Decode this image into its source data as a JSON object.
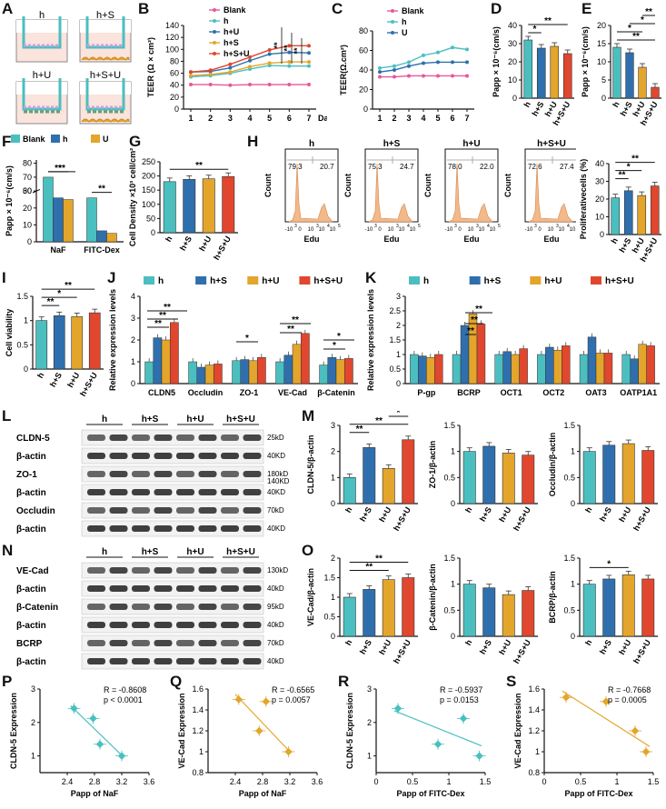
{
  "panel_letters": {
    "A": "A",
    "B": "B",
    "C": "C",
    "D": "D",
    "E": "E",
    "F": "F",
    "G": "G",
    "H": "H",
    "I": "I",
    "J": "J",
    "K": "K",
    "L": "L",
    "M": "M",
    "N": "N",
    "O": "O",
    "P": "P",
    "Q": "Q",
    "R": "R",
    "S": "S"
  },
  "colors": {
    "h": "#4bbfbf",
    "hS": "#2f6fad",
    "hU": "#e3a52b",
    "hSU": "#e0472e",
    "blank": "#e8589a",
    "flow": "#f2b98a",
    "blot": "#555555",
    "fit_blue": "#4bbfbf",
    "fit_yellow": "#e3a52b"
  },
  "schematic": {
    "labels": [
      "h",
      "h+S",
      "h+U",
      "h+S+U"
    ]
  },
  "day_label": "Day",
  "flow": {
    "panels": [
      {
        "title": "h",
        "left": "79.3",
        "right": "20.7"
      },
      {
        "title": "h+S",
        "left": "75.3",
        "right": "24.7"
      },
      {
        "title": "h+U",
        "left": "78.0",
        "right": "22.0"
      },
      {
        "title": "h+S+U",
        "left": "72.6",
        "right": "27.4"
      }
    ],
    "ylabel": "Count",
    "xlabel": "Edu",
    "ticks": [
      "-10",
      "0",
      "10",
      "10",
      "10"
    ],
    "tick_exp": [
      "3",
      "",
      "3",
      "4",
      "5"
    ]
  },
  "blots": {
    "L": {
      "header": [
        "h",
        "h+S",
        "h+U",
        "h+S+U"
      ],
      "rows": [
        {
          "name": "CLDN-5",
          "kd": "25kD"
        },
        {
          "name": "β-actin",
          "kd": "40KD"
        },
        {
          "name": "ZO-1",
          "kd": "180kD",
          "kd2": "140KD"
        },
        {
          "name": "β-actin",
          "kd": "40KD"
        },
        {
          "name": "Occludin",
          "kd": "70kD"
        },
        {
          "name": "β-actin",
          "kd": "40KD"
        }
      ]
    },
    "N": {
      "header": [
        "h",
        "h+S",
        "h+U",
        "h+S+U"
      ],
      "rows": [
        {
          "name": "VE-Cad",
          "kd": "130kD"
        },
        {
          "name": "β-actin",
          "kd": "40kD"
        },
        {
          "name": "β-Catenin",
          "kd": "95kD"
        },
        {
          "name": "β-actin",
          "kd": "40kD"
        },
        {
          "name": "BCRP",
          "kd": "70kD"
        },
        {
          "name": "β-actin",
          "kd": "40kD"
        }
      ]
    }
  },
  "chart_data": [
    {
      "id": "B",
      "type": "line",
      "ylabel": "TEER (Ω × cm²)",
      "xlabel": "Day",
      "ylim": [
        0,
        140
      ],
      "yticks": [
        0,
        20,
        40,
        60,
        80,
        100,
        120,
        140
      ],
      "x": [
        1,
        2,
        3,
        4,
        5,
        6,
        7
      ],
      "legend": [
        "Blank",
        "h",
        "h+U",
        "h+S",
        "h+S+U"
      ],
      "series": [
        {
          "name": "Blank",
          "color": "#e8589a",
          "values": [
            41,
            41,
            40,
            41,
            41,
            41,
            41
          ]
        },
        {
          "name": "h",
          "color": "#4bbfbf",
          "values": [
            54,
            56,
            60,
            67,
            73,
            72,
            72
          ]
        },
        {
          "name": "h+U",
          "color": "#2f6fad",
          "values": [
            62,
            63,
            69,
            81,
            92,
            95,
            94
          ]
        },
        {
          "name": "h+S",
          "color": "#e3a52b",
          "values": [
            56,
            58,
            62,
            71,
            77,
            79,
            79
          ]
        },
        {
          "name": "h+S+U",
          "color": "#e0472e",
          "values": [
            62,
            65,
            75,
            87,
            99,
            106,
            106
          ]
        }
      ],
      "annotations": [
        "**",
        "**",
        "**"
      ]
    },
    {
      "id": "C",
      "type": "line",
      "ylabel": "TEER(Ω.cm²)",
      "xlabel": "",
      "ylim": [
        0,
        80
      ],
      "yticks": [
        0,
        20,
        40,
        60,
        80
      ],
      "x": [
        1,
        2,
        3,
        4,
        5,
        6,
        7
      ],
      "legend": [
        "Blank",
        "h",
        "U"
      ],
      "series": [
        {
          "name": "Blank",
          "color": "#e8589a",
          "values": [
            33,
            33,
            34,
            34,
            34,
            34,
            34
          ]
        },
        {
          "name": "h",
          "color": "#4bbfbf",
          "values": [
            42,
            44,
            48,
            55,
            58,
            63,
            61
          ]
        },
        {
          "name": "U",
          "color": "#2f6fad",
          "values": [
            38,
            40,
            44,
            47,
            48,
            48,
            48
          ]
        }
      ]
    },
    {
      "id": "D",
      "type": "bar",
      "ylabel": "Papp × 10⁻⁶(cm/s)",
      "ylim": [
        0,
        40
      ],
      "yticks": [
        0,
        10,
        20,
        30,
        40
      ],
      "categories": [
        "h",
        "h+S",
        "h+U",
        "h+S+U"
      ],
      "values": [
        32,
        27.5,
        28.5,
        24.5
      ],
      "colors": [
        "#4bbfbf",
        "#2f6fad",
        "#e3a52b",
        "#e0472e"
      ],
      "annotations": [
        {
          "a": 0,
          "b": 1,
          "label": "*"
        },
        {
          "a": 0,
          "b": 3,
          "label": "**"
        }
      ]
    },
    {
      "id": "E",
      "type": "bar",
      "ylabel": "Papp × 10⁻⁶(cm/s)",
      "ylim": [
        0,
        20
      ],
      "yticks": [
        0,
        5,
        10,
        15,
        20
      ],
      "categories": [
        "h",
        "h+S",
        "h+U",
        "h+S+U"
      ],
      "values": [
        14,
        12.5,
        8.5,
        3
      ],
      "colors": [
        "#4bbfbf",
        "#2f6fad",
        "#e3a52b",
        "#e0472e"
      ],
      "annotations": [
        {
          "a": 0,
          "b": 3,
          "label": "**"
        },
        {
          "a": 0,
          "b": 2,
          "label": "*"
        },
        {
          "a": 1,
          "b": 3,
          "label": "*"
        },
        {
          "a": 2,
          "b": 3,
          "label": "**"
        }
      ]
    },
    {
      "id": "F",
      "type": "bar",
      "ylabel": "Papp × 10⁻⁶(cm/s)",
      "ylim": [
        0,
        80
      ],
      "yticks": [
        0,
        10,
        20,
        30,
        60,
        70,
        80
      ],
      "categories": [
        "NaF",
        "FITC-Dex"
      ],
      "legend": [
        "Blank",
        "h",
        "U"
      ],
      "series": [
        {
          "name": "Blank",
          "color": "#4bbfbf",
          "values": [
            70,
            26
          ]
        },
        {
          "name": "h",
          "color": "#2f6fad",
          "values": [
            26,
            6.5
          ]
        },
        {
          "name": "U",
          "color": "#e3a52b",
          "values": [
            25,
            5
          ]
        }
      ],
      "annotations": [
        "**",
        "**",
        "**"
      ]
    },
    {
      "id": "G",
      "type": "bar",
      "ylabel": "Cell Density ×10³ cell/cm²",
      "ylim": [
        0,
        250
      ],
      "yticks": [
        0,
        50,
        100,
        150,
        200,
        250
      ],
      "categories": [
        "h",
        "h+S",
        "h+U",
        "h+S+U"
      ],
      "values": [
        180,
        188,
        190,
        198
      ],
      "colors": [
        "#4bbfbf",
        "#2f6fad",
        "#e3a52b",
        "#e0472e"
      ],
      "annotations": [
        {
          "a": 0,
          "b": 3,
          "label": "**"
        }
      ]
    },
    {
      "id": "H",
      "type": "bar",
      "ylabel": "Proliferativecells (%)",
      "ylim": [
        0,
        40
      ],
      "yticks": [
        0,
        10,
        20,
        30,
        40
      ],
      "categories": [
        "h",
        "h+S",
        "h+U",
        "h+S+U"
      ],
      "values": [
        20.7,
        24.7,
        22.0,
        27.4
      ],
      "colors": [
        "#4bbfbf",
        "#2f6fad",
        "#e3a52b",
        "#e0472e"
      ],
      "annotations": [
        {
          "a": 0,
          "b": 1,
          "label": "**"
        },
        {
          "a": 0,
          "b": 2,
          "label": "*"
        },
        {
          "a": 0,
          "b": 3,
          "label": "**"
        }
      ]
    },
    {
      "id": "I",
      "type": "bar",
      "ylabel": "Cell viability",
      "ylim": [
        0,
        1.5
      ],
      "yticks": [
        0.0,
        0.5,
        1.0,
        1.5
      ],
      "categories": [
        "h",
        "h+S",
        "h+U",
        "h+S+U"
      ],
      "values": [
        1.0,
        1.1,
        1.08,
        1.16
      ],
      "colors": [
        "#4bbfbf",
        "#2f6fad",
        "#e3a52b",
        "#e0472e"
      ],
      "annotations": [
        {
          "a": 0,
          "b": 1,
          "label": "**"
        },
        {
          "a": 0,
          "b": 2,
          "label": "*"
        },
        {
          "a": 0,
          "b": 3,
          "label": "**"
        }
      ]
    },
    {
      "id": "J",
      "type": "bar",
      "ylabel": "Relative expression levels",
      "ylim": [
        0,
        4
      ],
      "yticks": [
        0,
        1,
        2,
        3,
        4
      ],
      "categories": [
        "CLDN5",
        "Occludin",
        "ZO-1",
        "VE-Cad",
        "β-Catenin"
      ],
      "legend": [
        "h",
        "h+S",
        "h+U",
        "h+S+U"
      ],
      "series": [
        {
          "name": "h",
          "color": "#4bbfbf",
          "values": [
            1.0,
            1.0,
            1.05,
            1.0,
            0.85
          ]
        },
        {
          "name": "h+S",
          "color": "#2f6fad",
          "values": [
            2.1,
            0.75,
            1.1,
            1.3,
            1.2
          ]
        },
        {
          "name": "h+U",
          "color": "#e3a52b",
          "values": [
            2.0,
            0.85,
            1.05,
            1.8,
            1.1
          ]
        },
        {
          "name": "h+S+U",
          "color": "#e0472e",
          "values": [
            2.8,
            0.9,
            1.2,
            2.3,
            1.15
          ]
        }
      ]
    },
    {
      "id": "K",
      "type": "bar",
      "ylabel": "Relative expression levels",
      "ylim": [
        0,
        3
      ],
      "yticks": [
        0.0,
        0.5,
        1.0,
        1.5,
        2.0,
        2.5,
        3.0
      ],
      "categories": [
        "P-gp",
        "BCRP",
        "OCT1",
        "OCT2",
        "OAT3",
        "OATP1A1"
      ],
      "legend": [
        "h",
        "h+S",
        "h+U",
        "h+S+U"
      ],
      "series": [
        {
          "name": "h",
          "color": "#4bbfbf",
          "values": [
            1.0,
            1.0,
            1.0,
            1.0,
            1.0,
            1.0
          ]
        },
        {
          "name": "h+S",
          "color": "#2f6fad",
          "values": [
            0.95,
            2.0,
            1.1,
            1.25,
            1.6,
            0.85
          ]
        },
        {
          "name": "h+U",
          "color": "#e3a52b",
          "values": [
            0.9,
            2.4,
            1.0,
            1.15,
            1.05,
            1.35
          ]
        },
        {
          "name": "h+S+U",
          "color": "#e0472e",
          "values": [
            1.0,
            2.05,
            1.2,
            1.3,
            1.05,
            1.3
          ]
        }
      ]
    },
    {
      "id": "M1",
      "type": "bar",
      "ylabel": "CLDN-5/β-actin",
      "ylim": [
        0,
        3
      ],
      "yticks": [
        0,
        1,
        2,
        3
      ],
      "categories": [
        "h",
        "h+S",
        "h+U",
        "h+S+U"
      ],
      "values": [
        1.0,
        2.15,
        1.35,
        2.45
      ],
      "colors": [
        "#4bbfbf",
        "#2f6fad",
        "#e3a52b",
        "#e0472e"
      ],
      "annotations": [
        {
          "a": 0,
          "b": 1,
          "label": "**"
        },
        {
          "a": 0,
          "b": 3,
          "label": "**"
        },
        {
          "a": 2,
          "b": 3,
          "label": "*"
        }
      ]
    },
    {
      "id": "M2",
      "type": "bar",
      "ylabel": "ZO-1/β-actin",
      "ylim": [
        0,
        1.5
      ],
      "yticks": [
        0.0,
        0.5,
        1.0,
        1.5
      ],
      "categories": [
        "h",
        "h+S",
        "h+U",
        "h+S+U"
      ],
      "values": [
        1.0,
        1.1,
        0.97,
        0.93
      ],
      "colors": [
        "#4bbfbf",
        "#2f6fad",
        "#e3a52b",
        "#e0472e"
      ],
      "annotations": []
    },
    {
      "id": "M3",
      "type": "bar",
      "ylabel": "Occludin/β-actin",
      "ylim": [
        0,
        1.5
      ],
      "yticks": [
        0.0,
        0.5,
        1.0,
        1.5
      ],
      "categories": [
        "h",
        "h+S",
        "h+U",
        "h+S+U"
      ],
      "values": [
        1.0,
        1.12,
        1.15,
        1.02
      ],
      "colors": [
        "#4bbfbf",
        "#2f6fad",
        "#e3a52b",
        "#e0472e"
      ],
      "annotations": []
    },
    {
      "id": "O1",
      "type": "bar",
      "ylabel": "VE-Cad/β-actin",
      "ylim": [
        0,
        2.0
      ],
      "yticks": [
        0.0,
        0.5,
        1.0,
        1.5,
        2.0
      ],
      "categories": [
        "h",
        "h+S",
        "h+U",
        "h+S+U"
      ],
      "values": [
        1.0,
        1.2,
        1.45,
        1.5
      ],
      "colors": [
        "#4bbfbf",
        "#2f6fad",
        "#e3a52b",
        "#e0472e"
      ],
      "annotations": [
        {
          "a": 0,
          "b": 2,
          "label": "**"
        },
        {
          "a": 0,
          "b": 3,
          "label": "**"
        }
      ]
    },
    {
      "id": "O2",
      "type": "bar",
      "ylabel": "β-Catenin/β-actin",
      "ylim": [
        0,
        1.5
      ],
      "yticks": [
        0.0,
        0.5,
        1.0,
        1.5
      ],
      "categories": [
        "h",
        "h+S",
        "h+U",
        "h+S+U"
      ],
      "values": [
        1.0,
        0.93,
        0.8,
        0.88
      ],
      "colors": [
        "#4bbfbf",
        "#2f6fad",
        "#e3a52b",
        "#e0472e"
      ],
      "annotations": []
    },
    {
      "id": "O3",
      "type": "bar",
      "ylabel": "BCRP/β-actin",
      "ylim": [
        0,
        1.5
      ],
      "yticks": [
        0.0,
        0.5,
        1.0,
        1.5
      ],
      "categories": [
        "h",
        "h+S",
        "h+U",
        "h+S+U"
      ],
      "values": [
        1.0,
        1.1,
        1.18,
        1.1
      ],
      "colors": [
        "#4bbfbf",
        "#2f6fad",
        "#e3a52b",
        "#e0472e"
      ],
      "annotations": [
        {
          "a": 0,
          "b": 2,
          "label": "*"
        }
      ]
    },
    {
      "id": "P",
      "type": "scatter",
      "ylabel": "CLDN-5 Expression",
      "xlabel": "Papp of NaF",
      "xlim": [
        2.0,
        3.6
      ],
      "xticks": [
        2.4,
        2.8,
        3.2,
        3.6
      ],
      "ylim": [
        0.5,
        3.0
      ],
      "yticks": [
        1,
        2,
        3
      ],
      "points": [
        [
          2.5,
          2.42
        ],
        [
          2.78,
          2.12
        ],
        [
          2.88,
          1.35
        ],
        [
          3.2,
          1.0
        ]
      ],
      "fit": [
        [
          2.45,
          2.5
        ],
        [
          3.22,
          0.98
        ]
      ],
      "color": "#4bbfbf",
      "R": "R = -0.8608",
      "p": "p < 0.0001"
    },
    {
      "id": "Q",
      "type": "scatter",
      "ylabel": "VE-Cad Expression",
      "xlabel": "Papp of NaF",
      "xlim": [
        2.0,
        3.6
      ],
      "xticks": [
        2.4,
        2.8,
        3.2,
        3.6
      ],
      "ylim": [
        0.8,
        1.6
      ],
      "yticks": [
        0.8,
        1.0,
        1.2,
        1.4,
        1.6
      ],
      "points": [
        [
          2.45,
          1.5
        ],
        [
          2.75,
          1.2
        ],
        [
          2.85,
          1.48
        ],
        [
          3.18,
          1.0
        ]
      ],
      "fit": [
        [
          2.4,
          1.55
        ],
        [
          3.2,
          1.0
        ]
      ],
      "color": "#e3a52b",
      "R": "R = -0.6565",
      "p": "p = 0.0057"
    },
    {
      "id": "R",
      "type": "scatter",
      "ylabel": "CLDN-5 Expression",
      "xlabel": "Papp of FITC-Dex",
      "xlim": [
        0.0,
        1.5
      ],
      "xticks": [
        0.0,
        0.5,
        1.0,
        1.5
      ],
      "ylim": [
        0.5,
        3.0
      ],
      "yticks": [
        1,
        2,
        3
      ],
      "points": [
        [
          0.3,
          2.42
        ],
        [
          0.85,
          1.35
        ],
        [
          1.2,
          2.12
        ],
        [
          1.42,
          1.0
        ]
      ],
      "fit": [
        [
          0.25,
          2.35
        ],
        [
          1.45,
          1.3
        ]
      ],
      "color": "#4bbfbf",
      "R": "R = -0.5937",
      "p": "p = 0.0153"
    },
    {
      "id": "S",
      "type": "scatter",
      "ylabel": "VE-Cad Expression",
      "xlabel": "Papp of FITC-Dex",
      "xlim": [
        0.0,
        1.5
      ],
      "xticks": [
        0.0,
        0.5,
        1.0,
        1.5
      ],
      "ylim": [
        0.8,
        1.6
      ],
      "yticks": [
        0.8,
        1.0,
        1.2,
        1.4,
        1.6
      ],
      "points": [
        [
          0.3,
          1.52
        ],
        [
          0.85,
          1.48
        ],
        [
          1.25,
          1.2
        ],
        [
          1.4,
          1.0
        ]
      ],
      "fit": [
        [
          0.25,
          1.58
        ],
        [
          1.45,
          1.05
        ]
      ],
      "color": "#e3a52b",
      "R": "R = -0.7668",
      "p": "p = 0.0005"
    }
  ]
}
